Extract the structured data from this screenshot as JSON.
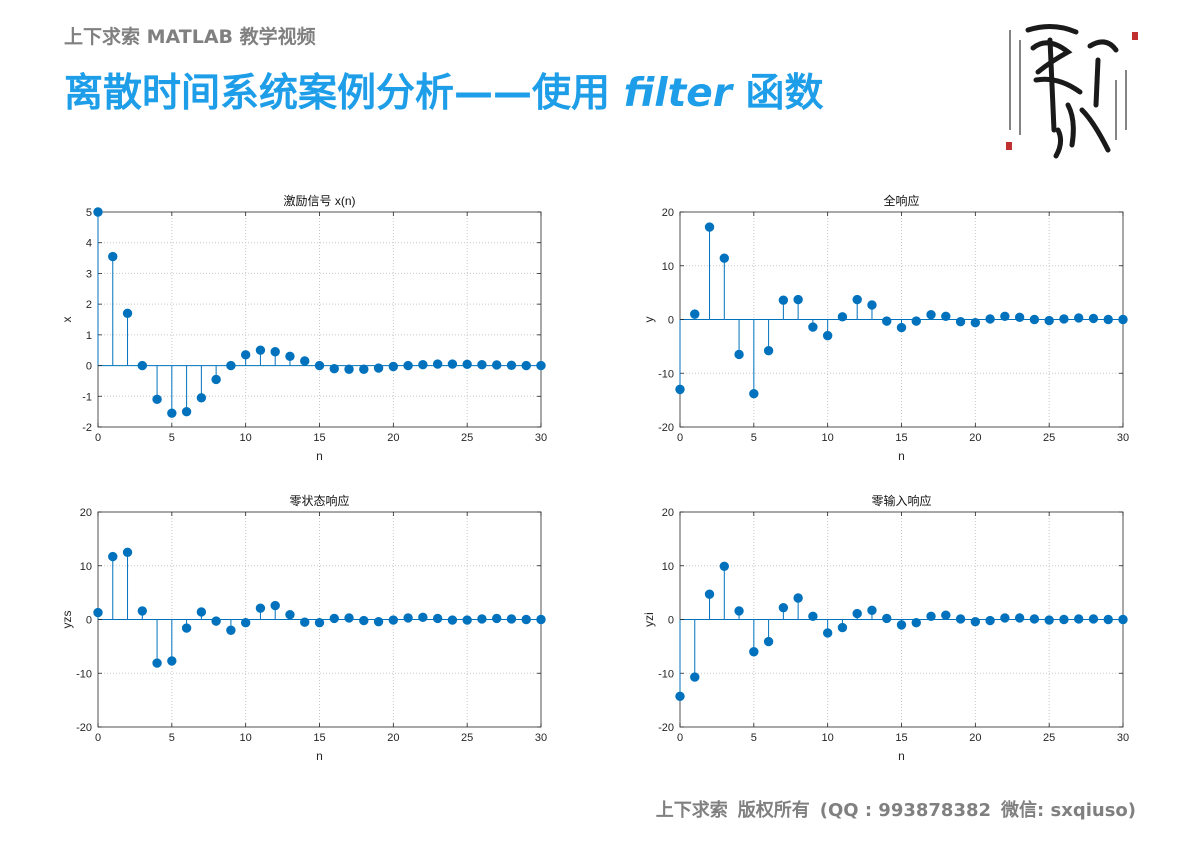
{
  "header": {
    "course": "上下求索 MATLAB 教学视频",
    "title_pre": "离散时间系统案例分析——使用 ",
    "title_kw": "filter",
    "title_post": " 函数"
  },
  "footer": {
    "owner": "上下求索",
    "rights": "版权所有",
    "qq": "(QQ : 993878382",
    "wechat": "微信: sxqiuso)"
  },
  "colors": {
    "accent": "#1e9ee8",
    "stem": "#0072bd",
    "muted": "#808080"
  },
  "chart_data": [
    {
      "type": "stem",
      "title": "激励信号 x(n)",
      "xlabel": "n",
      "ylabel": "x",
      "xlim": [
        0,
        30
      ],
      "ylim": [
        -2,
        5
      ],
      "grid": true,
      "xticks": [
        0,
        5,
        10,
        15,
        20,
        25,
        30
      ],
      "yticks": [
        -2,
        -1,
        0,
        1,
        2,
        3,
        4,
        5
      ],
      "x": [
        0,
        1,
        2,
        3,
        4,
        5,
        6,
        7,
        8,
        9,
        10,
        11,
        12,
        13,
        14,
        15,
        16,
        17,
        18,
        19,
        20,
        21,
        22,
        23,
        24,
        25,
        26,
        27,
        28,
        29,
        30
      ],
      "values": [
        5.0,
        3.55,
        1.7,
        0.0,
        -1.1,
        -1.55,
        -1.5,
        -1.05,
        -0.45,
        0.0,
        0.35,
        0.5,
        0.45,
        0.3,
        0.15,
        0.0,
        -0.1,
        -0.12,
        -0.12,
        -0.08,
        -0.03,
        0.0,
        0.03,
        0.05,
        0.05,
        0.04,
        0.03,
        0.02,
        0.01,
        0.0,
        0.0
      ]
    },
    {
      "type": "stem",
      "title": "全响应",
      "xlabel": "n",
      "ylabel": "y",
      "xlim": [
        0,
        30
      ],
      "ylim": [
        -20,
        20
      ],
      "grid": true,
      "xticks": [
        0,
        5,
        10,
        15,
        20,
        25,
        30
      ],
      "yticks": [
        -20,
        -10,
        0,
        10,
        20
      ],
      "x": [
        0,
        1,
        2,
        3,
        4,
        5,
        6,
        7,
        8,
        9,
        10,
        11,
        12,
        13,
        14,
        15,
        16,
        17,
        18,
        19,
        20,
        21,
        22,
        23,
        24,
        25,
        26,
        27,
        28,
        29,
        30
      ],
      "values": [
        -13.0,
        1.0,
        17.2,
        11.4,
        -6.5,
        -13.8,
        -5.8,
        3.6,
        3.7,
        -1.4,
        -3.0,
        0.5,
        3.7,
        2.7,
        -0.3,
        -1.5,
        -0.3,
        0.9,
        0.6,
        -0.4,
        -0.6,
        0.1,
        0.6,
        0.4,
        0.0,
        -0.2,
        0.1,
        0.3,
        0.2,
        0.0,
        0.0
      ]
    },
    {
      "type": "stem",
      "title": "零状态响应",
      "xlabel": "n",
      "ylabel": "yzs",
      "xlim": [
        0,
        30
      ],
      "ylim": [
        -20,
        20
      ],
      "grid": true,
      "xticks": [
        0,
        5,
        10,
        15,
        20,
        25,
        30
      ],
      "yticks": [
        -20,
        -10,
        0,
        10,
        20
      ],
      "x": [
        0,
        1,
        2,
        3,
        4,
        5,
        6,
        7,
        8,
        9,
        10,
        11,
        12,
        13,
        14,
        15,
        16,
        17,
        18,
        19,
        20,
        21,
        22,
        23,
        24,
        25,
        26,
        27,
        28,
        29,
        30
      ],
      "values": [
        1.3,
        11.7,
        12.5,
        1.6,
        -8.1,
        -7.7,
        -1.6,
        1.4,
        -0.3,
        -2.0,
        -0.6,
        2.1,
        2.6,
        0.9,
        -0.5,
        -0.6,
        0.2,
        0.3,
        -0.2,
        -0.4,
        -0.1,
        0.3,
        0.4,
        0.2,
        -0.1,
        -0.1,
        0.1,
        0.2,
        0.1,
        0.0,
        0.0
      ]
    },
    {
      "type": "stem",
      "title": "零输入响应",
      "xlabel": "n",
      "ylabel": "yzi",
      "xlim": [
        0,
        30
      ],
      "ylim": [
        -20,
        20
      ],
      "grid": true,
      "xticks": [
        0,
        5,
        10,
        15,
        20,
        25,
        30
      ],
      "yticks": [
        -20,
        -10,
        0,
        10,
        20
      ],
      "x": [
        0,
        1,
        2,
        3,
        4,
        5,
        6,
        7,
        8,
        9,
        10,
        11,
        12,
        13,
        14,
        15,
        16,
        17,
        18,
        19,
        20,
        21,
        22,
        23,
        24,
        25,
        26,
        27,
        28,
        29,
        30
      ],
      "values": [
        -14.3,
        -10.7,
        4.7,
        9.9,
        1.6,
        -6.0,
        -4.1,
        2.2,
        4.0,
        0.6,
        -2.5,
        -1.5,
        1.1,
        1.7,
        0.2,
        -1.0,
        -0.6,
        0.6,
        0.8,
        0.1,
        -0.4,
        -0.2,
        0.3,
        0.3,
        0.1,
        -0.1,
        0.0,
        0.1,
        0.1,
        0.0,
        0.0
      ]
    }
  ]
}
